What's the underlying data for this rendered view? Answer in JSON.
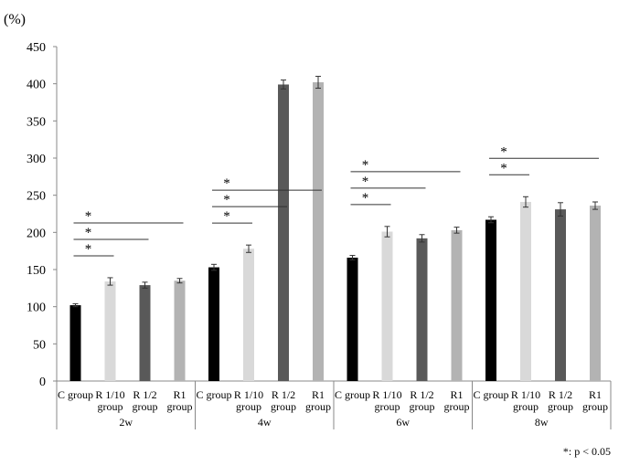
{
  "chart_data": {
    "type": "bar",
    "ylabel": "(%)",
    "ylim": [
      0,
      450
    ],
    "yticks": [
      0,
      50,
      100,
      150,
      200,
      250,
      300,
      350,
      400,
      450
    ],
    "grid": false,
    "categories": [
      {
        "line1": "C group",
        "line2": ""
      },
      {
        "line1": "R 1/10",
        "line2": "group"
      },
      {
        "line1": "R 1/2",
        "line2": "group"
      },
      {
        "line1": "R1",
        "line2": "group"
      }
    ],
    "groups": [
      {
        "name": "2w",
        "values": [
          102,
          134,
          129,
          135
        ],
        "errors": [
          2,
          5,
          4,
          3
        ]
      },
      {
        "name": "4w",
        "values": [
          153,
          178,
          399,
          402
        ],
        "errors": [
          4,
          5,
          6,
          8
        ]
      },
      {
        "name": "6w",
        "values": [
          166,
          201,
          192,
          203
        ],
        "errors": [
          3,
          7,
          5,
          4
        ]
      },
      {
        "name": "8w",
        "values": [
          217,
          241,
          231,
          236
        ],
        "errors": [
          4,
          7,
          9,
          5
        ]
      }
    ],
    "bar_colors": [
      "#000000",
      "#d9d9d9",
      "#595959",
      "#b3b3b3"
    ],
    "significance": [
      {
        "group": 0,
        "from": 0,
        "to": 1,
        "label": "*"
      },
      {
        "group": 0,
        "from": 0,
        "to": 2,
        "label": "*"
      },
      {
        "group": 0,
        "from": 0,
        "to": 3,
        "label": "*"
      },
      {
        "group": 1,
        "from": 0,
        "to": 1,
        "label": "*"
      },
      {
        "group": 1,
        "from": 0,
        "to": 2,
        "label": "*"
      },
      {
        "group": 1,
        "from": 0,
        "to": 3,
        "label": "*"
      },
      {
        "group": 2,
        "from": 0,
        "to": 1,
        "label": "*"
      },
      {
        "group": 2,
        "from": 0,
        "to": 2,
        "label": "*"
      },
      {
        "group": 2,
        "from": 0,
        "to": 3,
        "label": "*"
      },
      {
        "group": 3,
        "from": 0,
        "to": 1,
        "label": "*"
      },
      {
        "group": 3,
        "from": 0,
        "to": 3,
        "label": "*"
      }
    ],
    "footnote": "*: p < 0.05"
  }
}
